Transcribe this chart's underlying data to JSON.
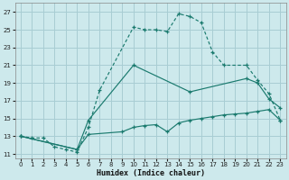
{
  "background_color": "#cde9ec",
  "grid_color": "#a8cdd3",
  "line_color": "#1a7a6e",
  "xlabel": "Humidex (Indice chaleur)",
  "xlim": [
    -0.5,
    23.5
  ],
  "ylim": [
    10.5,
    28.0
  ],
  "xticks": [
    0,
    1,
    2,
    3,
    4,
    5,
    6,
    7,
    8,
    9,
    10,
    11,
    12,
    13,
    14,
    15,
    16,
    17,
    18,
    19,
    20,
    21,
    22,
    23
  ],
  "yticks": [
    11,
    13,
    15,
    17,
    19,
    21,
    23,
    25,
    27
  ],
  "line1_x": [
    0,
    1,
    2,
    3,
    4,
    5,
    6,
    7,
    10,
    11,
    12,
    13,
    14,
    15,
    16,
    17,
    18,
    20,
    21,
    22,
    23
  ],
  "line1_y": [
    13.0,
    12.8,
    12.8,
    11.8,
    11.5,
    11.2,
    14.0,
    18.2,
    25.3,
    25.0,
    25.0,
    24.8,
    26.8,
    26.5,
    25.8,
    22.5,
    21.0,
    21.0,
    19.3,
    17.8,
    14.8
  ],
  "line2_x": [
    0,
    5,
    6,
    10,
    15,
    20,
    21,
    22,
    23
  ],
  "line2_y": [
    13.0,
    11.5,
    14.8,
    21.0,
    18.0,
    19.5,
    19.0,
    17.2,
    16.2
  ],
  "line3_x": [
    0,
    5,
    6,
    9,
    10,
    11,
    12,
    13,
    14,
    15,
    16,
    17,
    18,
    19,
    20,
    21,
    22,
    23
  ],
  "line3_y": [
    13.0,
    11.5,
    13.2,
    13.5,
    14.0,
    14.2,
    14.3,
    13.5,
    14.5,
    14.8,
    15.0,
    15.2,
    15.4,
    15.5,
    15.6,
    15.8,
    16.0,
    14.8
  ]
}
